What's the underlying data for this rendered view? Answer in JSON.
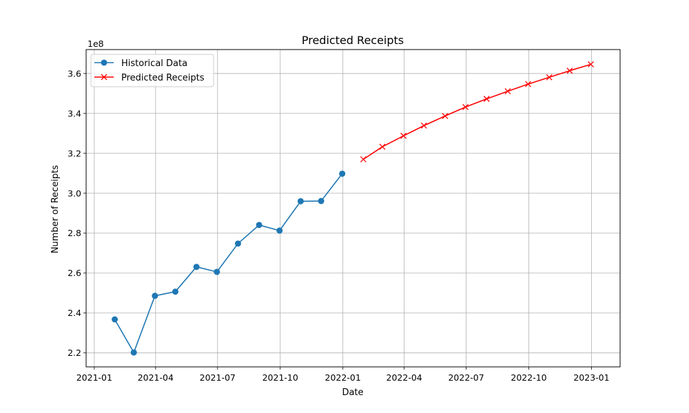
{
  "chart_data": {
    "type": "line",
    "title": "Predicted Receipts",
    "xlabel": "Date",
    "ylabel": "Number of Receipts",
    "y_offset_label": "1e8",
    "y_scale": 100000000,
    "ylim": [
      2.13,
      3.72
    ],
    "xlim": [
      "2020-12-20",
      "2023-02-12"
    ],
    "grid": true,
    "legend_position": "top-left",
    "x_ticks": [
      {
        "date": "2021-01-01",
        "label": "2021-01"
      },
      {
        "date": "2021-04-01",
        "label": "2021-04"
      },
      {
        "date": "2021-07-01",
        "label": "2021-07"
      },
      {
        "date": "2021-10-01",
        "label": "2021-10"
      },
      {
        "date": "2022-01-01",
        "label": "2022-01"
      },
      {
        "date": "2022-04-01",
        "label": "2022-04"
      },
      {
        "date": "2022-07-01",
        "label": "2022-07"
      },
      {
        "date": "2022-10-01",
        "label": "2022-10"
      },
      {
        "date": "2023-01-01",
        "label": "2023-01"
      }
    ],
    "y_ticks": [
      2.2,
      2.4,
      2.6,
      2.8,
      3.0,
      3.2,
      3.4,
      3.6
    ],
    "y_tick_labels": [
      "2.2",
      "2.4",
      "2.6",
      "2.8",
      "3.0",
      "3.2",
      "3.4",
      "3.6"
    ],
    "series": [
      {
        "name": "Historical Data",
        "color": "#1f77b4",
        "marker": "circle",
        "x": [
          "2021-01-31",
          "2021-02-28",
          "2021-03-31",
          "2021-04-30",
          "2021-05-31",
          "2021-06-30",
          "2021-07-31",
          "2021-08-31",
          "2021-09-30",
          "2021-10-31",
          "2021-11-30",
          "2021-12-31"
        ],
        "y": [
          2.368,
          2.202,
          2.486,
          2.507,
          2.631,
          2.606,
          2.748,
          2.841,
          2.813,
          2.96,
          2.961,
          3.098
        ]
      },
      {
        "name": "Predicted Receipts",
        "color": "#ff0000",
        "marker": "x",
        "x": [
          "2022-01-31",
          "2022-02-28",
          "2022-03-31",
          "2022-04-30",
          "2022-05-31",
          "2022-06-30",
          "2022-07-31",
          "2022-08-31",
          "2022-09-30",
          "2022-10-31",
          "2022-11-30",
          "2022-12-31"
        ],
        "y": [
          3.17,
          3.233,
          3.288,
          3.339,
          3.387,
          3.432,
          3.473,
          3.511,
          3.547,
          3.581,
          3.614,
          3.646
        ]
      }
    ]
  }
}
